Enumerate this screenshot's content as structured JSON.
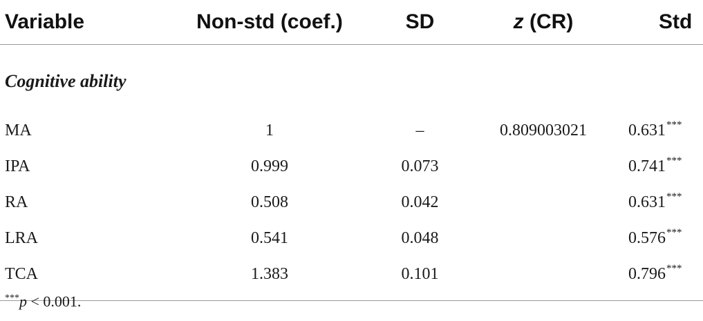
{
  "header": {
    "variable": "Variable",
    "nonstd": "Non-std (coef.)",
    "sd": "SD",
    "z_symbol": "z",
    "z_rest": " (CR)",
    "std": "Std"
  },
  "section_label": "Cognitive ability",
  "rows": [
    {
      "variable": "MA",
      "nonstd": "1",
      "sd": "–",
      "z": "0.809003021",
      "std": "0.631",
      "stars": "***"
    },
    {
      "variable": "IPA",
      "nonstd": "0.999",
      "sd": "0.073",
      "z": "",
      "std": "0.741",
      "stars": "***"
    },
    {
      "variable": "RA",
      "nonstd": "0.508",
      "sd": "0.042",
      "z": "",
      "std": "0.631",
      "stars": "***"
    },
    {
      "variable": "LRA",
      "nonstd": "0.541",
      "sd": "0.048",
      "z": "",
      "std": "0.576",
      "stars": "***"
    },
    {
      "variable": "TCA",
      "nonstd": "1.383",
      "sd": "0.101",
      "z": "",
      "std": "0.796",
      "stars": "***"
    }
  ],
  "footnote": {
    "stars": "***",
    "p": "p",
    "text": " < 0.001."
  }
}
